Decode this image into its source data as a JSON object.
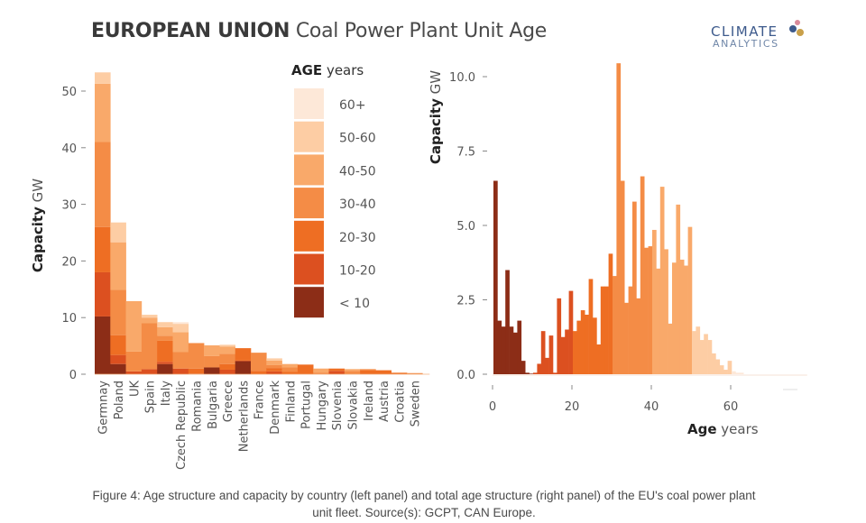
{
  "title": {
    "bold": "EUROPEAN UNION",
    "rest": " Coal Power Plant Unit Age"
  },
  "logo": {
    "line1": "CLIMATE",
    "line2": "ANALYTICS"
  },
  "caption": {
    "line1": "Figure 4: Age structure and capacity by country (left panel) and total age structure (right panel) of the EU's coal power plant",
    "line2": "unit fleet. Source(s): GCPT, CAN Europe."
  },
  "chart_data": [
    {
      "type": "bar",
      "stacked": true,
      "title": "Capacity by country and age",
      "ylabel_bold": "Capacity",
      "ylabel_unit": "GW",
      "ylim": [
        0,
        55
      ],
      "yticks": [
        0,
        10,
        20,
        30,
        40,
        50
      ],
      "grid": false,
      "categories": [
        "Germnay",
        "Poland",
        "UK",
        "Spain",
        "Italy",
        "Czech Republic",
        "Romania",
        "Bulgaria",
        "Greece",
        "Netherlands",
        "France",
        "Denmark",
        "Finland",
        "Portugal",
        "Hungary",
        "Slovenia",
        "Slovakia",
        "Ireland",
        "Austria",
        "Croatia",
        "Sweden"
      ],
      "legend": {
        "title_bold": "AGE",
        "title_unit": "years",
        "position": "top-center",
        "entries": [
          {
            "label": "60+",
            "color": "#fde8d8"
          },
          {
            "label": "50-60",
            "color": "#fdcda4"
          },
          {
            "label": "40-50",
            "color": "#f9a96a"
          },
          {
            "label": "30-40",
            "color": "#f48c46"
          },
          {
            "label": "20-30",
            "color": "#ee6e23"
          },
          {
            "label": "10-20",
            "color": "#dc5020"
          },
          {
            "label": "< 10",
            "color": "#8c2d17"
          }
        ]
      },
      "series": [
        {
          "name": "< 10",
          "color": "#8c2d17",
          "values": [
            10.2,
            1.8,
            0,
            0,
            1.8,
            0,
            0,
            1.2,
            0,
            2.3,
            0,
            0,
            0,
            0,
            0,
            0,
            0,
            0,
            0,
            0,
            0
          ]
        },
        {
          "name": "10-20",
          "color": "#dc5020",
          "values": [
            7.8,
            1.6,
            0.5,
            0.9,
            0.4,
            1.0,
            0.1,
            0,
            0.8,
            0.1,
            0,
            0.5,
            0,
            0,
            0,
            0.6,
            0,
            0,
            0,
            0,
            0
          ]
        },
        {
          "name": "20-30",
          "color": "#ee6e23",
          "values": [
            8.0,
            3.5,
            0,
            0,
            3.7,
            0,
            0.9,
            0,
            1.0,
            2.2,
            0.6,
            0.6,
            0.4,
            1.7,
            0,
            0.4,
            0,
            0.7,
            0.7,
            0.2,
            0
          ]
        },
        {
          "name": "30-40",
          "color": "#f48c46",
          "values": [
            15.0,
            8.0,
            3.5,
            8.1,
            0.9,
            2.9,
            4.5,
            2.0,
            1.8,
            0,
            3.2,
            0.5,
            0.8,
            0,
            0.3,
            0,
            0.6,
            0.2,
            0,
            0.1,
            0.2
          ]
        },
        {
          "name": "40-50",
          "color": "#f9a96a",
          "values": [
            10.3,
            8.4,
            8.9,
            1.0,
            1.5,
            3.5,
            0,
            1.9,
            1.3,
            0,
            0,
            0.8,
            0.6,
            0,
            0.7,
            0,
            0.3,
            0,
            0,
            0,
            0
          ]
        },
        {
          "name": "50-60",
          "color": "#fdcda4",
          "values": [
            2.0,
            3.5,
            0,
            0.5,
            0.9,
            1.5,
            0,
            0,
            0.3,
            0,
            0,
            0.4,
            0,
            0,
            0,
            0,
            0,
            0,
            0,
            0,
            0
          ]
        },
        {
          "name": "60+",
          "color": "#fde8d8",
          "values": [
            0,
            0,
            0,
            0,
            0,
            0.3,
            0,
            0,
            0,
            0,
            0,
            0,
            0,
            0,
            0,
            0,
            0,
            0,
            0,
            0,
            0
          ]
        }
      ]
    },
    {
      "type": "bar",
      "title": "Total age structure",
      "xlabel_bold": "Age",
      "xlabel_unit": "years",
      "ylabel_bold": "Capacity",
      "ylabel_unit": "GW",
      "xlim": [
        0,
        75
      ],
      "ylim": [
        0,
        10.5
      ],
      "xticks": [
        0,
        20,
        40,
        60
      ],
      "yticks": [
        "0.0",
        "2.5",
        "5.0",
        "7.5",
        "10.0"
      ],
      "grid": false,
      "x": [
        0,
        1,
        2,
        3,
        4,
        5,
        6,
        7,
        8,
        9,
        10,
        11,
        12,
        13,
        14,
        15,
        16,
        17,
        18,
        19,
        20,
        21,
        22,
        23,
        24,
        25,
        26,
        27,
        28,
        29,
        30,
        31,
        32,
        33,
        34,
        35,
        36,
        37,
        38,
        39,
        40,
        41,
        42,
        43,
        44,
        45,
        46,
        47,
        48,
        49,
        50,
        51,
        52,
        53,
        54,
        55,
        56,
        57,
        58,
        59,
        60,
        61,
        62,
        63,
        64,
        65,
        66,
        67,
        68,
        69,
        70,
        71,
        72,
        73,
        74
      ],
      "values": [
        6.5,
        1.8,
        1.6,
        3.5,
        1.6,
        1.4,
        1.8,
        0.45,
        0.05,
        0.02,
        0.05,
        0.35,
        1.45,
        0.55,
        1.3,
        0.05,
        2.55,
        1.25,
        1.5,
        2.8,
        1.45,
        1.8,
        2.15,
        2.0,
        3.2,
        1.9,
        1.0,
        2.95,
        2.95,
        4.05,
        3.3,
        10.45,
        6.5,
        2.4,
        2.95,
        5.8,
        2.55,
        6.65,
        4.25,
        4.3,
        4.85,
        3.55,
        6.3,
        4.2,
        1.7,
        3.75,
        5.7,
        3.85,
        3.65,
        4.95,
        1.45,
        1.6,
        1.15,
        1.35,
        1.15,
        0.7,
        0.5,
        0.3,
        0.15,
        0.45,
        0.1,
        0.05,
        0.05,
        0.0,
        0.0,
        0.0,
        0.0,
        0.0,
        0.0,
        0.0,
        0,
        0,
        0,
        0,
        0
      ],
      "color_bins": [
        {
          "from": 0,
          "to": 10,
          "color": "#8c2d17"
        },
        {
          "from": 10,
          "to": 20,
          "color": "#dc5020"
        },
        {
          "from": 20,
          "to": 30,
          "color": "#ee6e23"
        },
        {
          "from": 30,
          "to": 40,
          "color": "#f48c46"
        },
        {
          "from": 40,
          "to": 50,
          "color": "#f9a96a"
        },
        {
          "from": 50,
          "to": 60,
          "color": "#fdcda4"
        },
        {
          "from": 60,
          "to": 200,
          "color": "#fde8d8"
        }
      ]
    }
  ]
}
